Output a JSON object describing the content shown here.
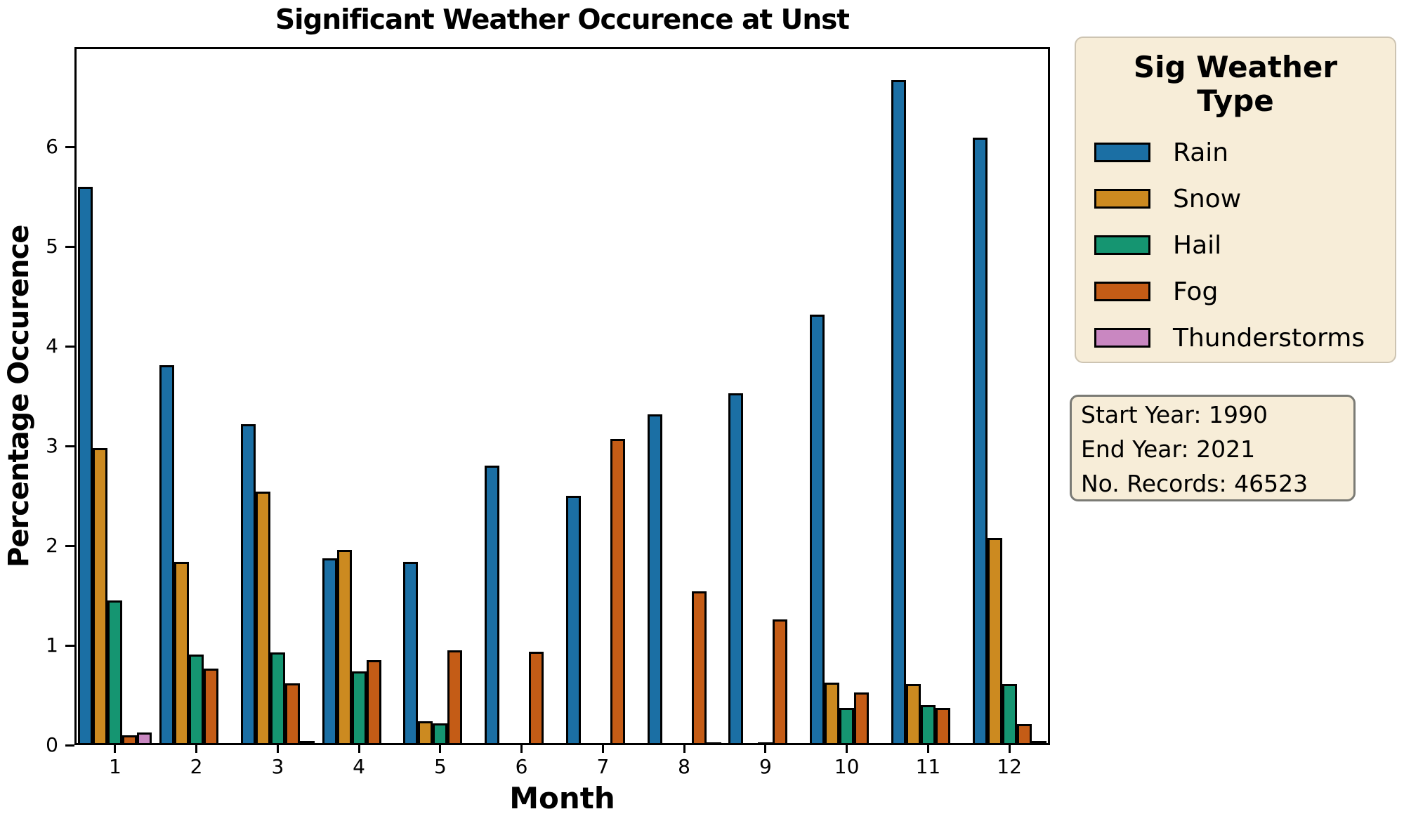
{
  "title": "Significant Weather Occurence at Unst",
  "axes": {
    "x_label": "Month",
    "y_label": "Percentage Occurence",
    "x_ticks": [
      "1",
      "2",
      "3",
      "4",
      "5",
      "6",
      "7",
      "8",
      "9",
      "10",
      "11",
      "12"
    ],
    "y_ticks": [
      "0",
      "1",
      "2",
      "3",
      "4",
      "5",
      "6"
    ],
    "y_max": 7
  },
  "legend": {
    "title_line1": "Sig Weather",
    "title_line2": "Type",
    "background": "#f7edd8",
    "entries": [
      {
        "label": "Rain",
        "color": "#1b6fa4"
      },
      {
        "label": "Snow",
        "color": "#cc8a20"
      },
      {
        "label": "Hail",
        "color": "#159571"
      },
      {
        "label": "Fog",
        "color": "#c45c16"
      },
      {
        "label": "Thunderstorms",
        "color": "#c987c1"
      }
    ]
  },
  "info_box": {
    "background": "#f7edd8",
    "lines": [
      "Start Year: 1990",
      "End Year: 2021",
      "No. Records: 46523"
    ]
  },
  "chart_data": {
    "type": "bar",
    "title": "Significant Weather Occurence at Unst",
    "xlabel": "Month",
    "ylabel": "Percentage Occurence",
    "categories": [
      1,
      2,
      3,
      4,
      5,
      6,
      7,
      8,
      9,
      10,
      11,
      12
    ],
    "ylim": [
      0,
      7
    ],
    "grid": false,
    "legend_position": "outside upper right",
    "series": [
      {
        "name": "Rain",
        "color": "#1b6fa4",
        "values": [
          5.6,
          3.81,
          3.22,
          1.87,
          1.84,
          2.8,
          2.5,
          3.32,
          3.53,
          4.32,
          6.67,
          6.09
        ]
      },
      {
        "name": "Snow",
        "color": "#cc8a20",
        "values": [
          2.98,
          1.84,
          2.54,
          1.96,
          0.24,
          0,
          0,
          0,
          0,
          0.63,
          0.61,
          2.08
        ]
      },
      {
        "name": "Hail",
        "color": "#159571",
        "values": [
          1.45,
          0.91,
          0.93,
          0.74,
          0.22,
          0,
          0,
          0,
          0.03,
          0.37,
          0.4,
          0.61
        ]
      },
      {
        "name": "Fog",
        "color": "#c45c16",
        "values": [
          0.1,
          0.77,
          0.62,
          0.85,
          0.95,
          0.94,
          3.07,
          1.54,
          1.26,
          0.53,
          0.37,
          0.21
        ]
      },
      {
        "name": "Thunderstorms",
        "color": "#c987c1",
        "values": [
          0.13,
          0,
          0.04,
          0,
          0.02,
          0.02,
          0,
          0.03,
          0,
          0,
          0,
          0.04
        ]
      }
    ]
  }
}
